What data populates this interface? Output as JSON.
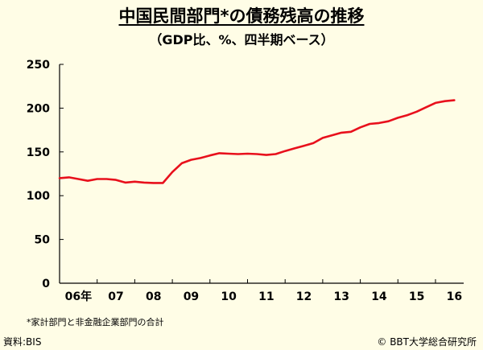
{
  "title": "中国民間部門*の債務残高の推移",
  "subtitle": "（GDP比、%、四半期ベース）",
  "footnote": "*家計部門と非金融企業部門の合計",
  "source": "資料:BIS",
  "copyright": "© BBT大学総合研究所",
  "colors": {
    "line": "#e8101c",
    "background": "#fffde6",
    "axis": "#000000"
  },
  "chart_data": {
    "type": "line",
    "title": "中国民間部門*の債務残高の推移",
    "subtitle": "（GDP比、%、四半期ベース）",
    "xlabel": "",
    "ylabel": "",
    "ylim": [
      0,
      250
    ],
    "yticks": [
      0,
      50,
      100,
      150,
      200,
      250
    ],
    "xtick_labels": [
      "06年",
      "07",
      "08",
      "09",
      "10",
      "11",
      "12",
      "13",
      "14",
      "15",
      "16"
    ],
    "xlim": [
      2006,
      2016.75
    ],
    "grid": false,
    "series": [
      {
        "x": [
          2006.0,
          2006.25,
          2006.5,
          2006.75,
          2007.0,
          2007.25,
          2007.5,
          2007.75,
          2008.0,
          2008.25,
          2008.5,
          2008.75,
          2009.0,
          2009.25,
          2009.5,
          2009.75,
          2010.0,
          2010.25,
          2010.5,
          2010.75,
          2011.0,
          2011.25,
          2011.5,
          2011.75,
          2012.0,
          2012.25,
          2012.5,
          2012.75,
          2013.0,
          2013.25,
          2013.5,
          2013.75,
          2014.0,
          2014.25,
          2014.5,
          2014.75,
          2015.0,
          2015.25,
          2015.5,
          2015.75,
          2016.0,
          2016.25,
          2016.5
        ],
        "values": [
          120,
          121,
          119,
          117,
          119,
          119,
          118,
          115,
          116,
          115,
          114.5,
          114.5,
          127,
          137,
          141,
          143,
          146,
          148.5,
          148,
          147.5,
          148,
          147.5,
          146.5,
          147.5,
          151,
          154,
          157,
          160,
          166,
          169,
          172,
          173,
          178,
          182,
          183,
          185,
          189,
          192,
          196,
          201,
          206,
          208,
          209
        ]
      }
    ]
  }
}
